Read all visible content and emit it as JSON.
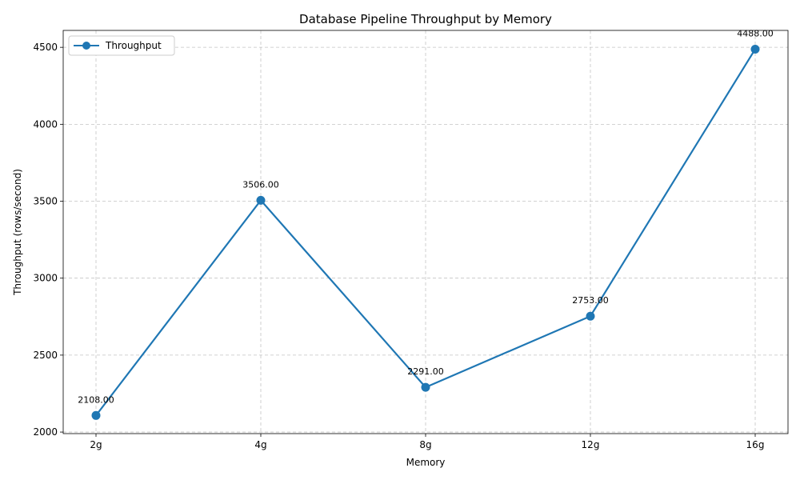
{
  "chart_data": {
    "type": "line",
    "title": "Database Pipeline Throughput by Memory",
    "xlabel": "Memory",
    "ylabel": "Throughput (rows/second)",
    "categories": [
      "2g",
      "4g",
      "8g",
      "12g",
      "16g"
    ],
    "series": [
      {
        "name": "Throughput",
        "values": [
          2108,
          3506,
          2291,
          2753,
          4488
        ],
        "data_labels": [
          "2108.00",
          "3506.00",
          "2291.00",
          "2753.00",
          "4488.00"
        ],
        "color": "#1f77b4"
      }
    ],
    "ylim": [
      1990,
      4610
    ],
    "yticks": [
      2000,
      2500,
      3000,
      3500,
      4000,
      4500
    ],
    "grid": true,
    "legend_position": "top-left"
  }
}
